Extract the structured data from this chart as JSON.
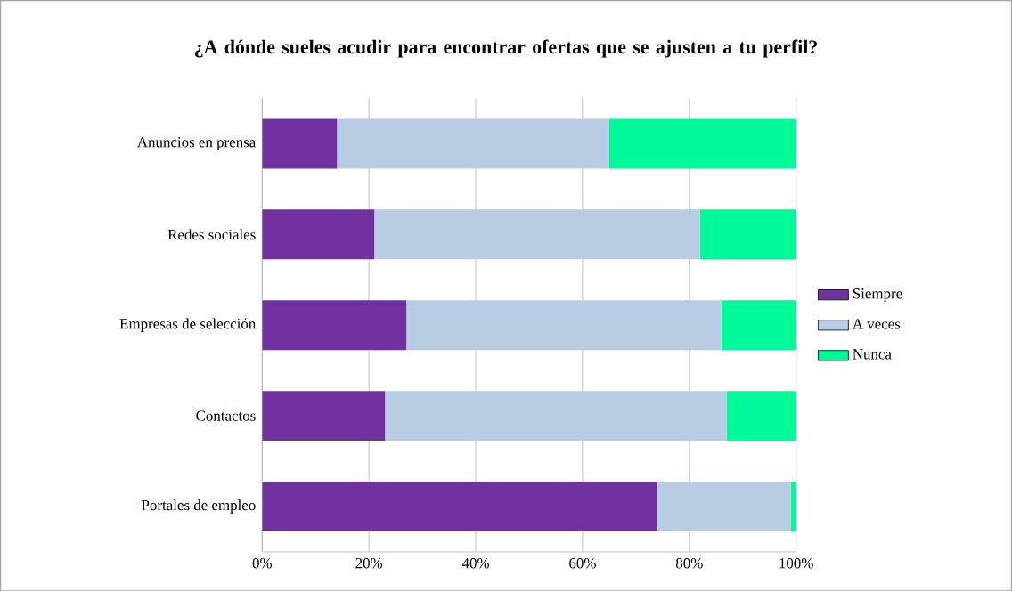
{
  "chart_data": {
    "type": "bar",
    "orientation": "horizontal",
    "stacked": true,
    "title": "¿A dónde sueles acudir para encontrar ofertas que se ajusten a tu perfil?",
    "categories": [
      "Anuncios en prensa",
      "Redes sociales",
      "Empresas de selección",
      "Contactos",
      "Portales de empleo"
    ],
    "series": [
      {
        "name": "Siempre",
        "color": "#7030a0",
        "values": [
          14,
          21,
          27,
          23,
          74
        ]
      },
      {
        "name": "A veces",
        "color": "#b8cce4",
        "values": [
          51,
          61,
          59,
          64,
          25
        ]
      },
      {
        "name": "Nunca",
        "color": "#00fa9a",
        "values": [
          35,
          18,
          14,
          13,
          1
        ]
      }
    ],
    "xlim": [
      0,
      100
    ],
    "xticks": [
      {
        "value": 0,
        "label": "0%"
      },
      {
        "value": 20,
        "label": "20%"
      },
      {
        "value": 40,
        "label": "40%"
      },
      {
        "value": 60,
        "label": "60%"
      },
      {
        "value": 80,
        "label": "80%"
      },
      {
        "value": 100,
        "label": "100%"
      }
    ],
    "grid": "x",
    "legend": "right"
  }
}
